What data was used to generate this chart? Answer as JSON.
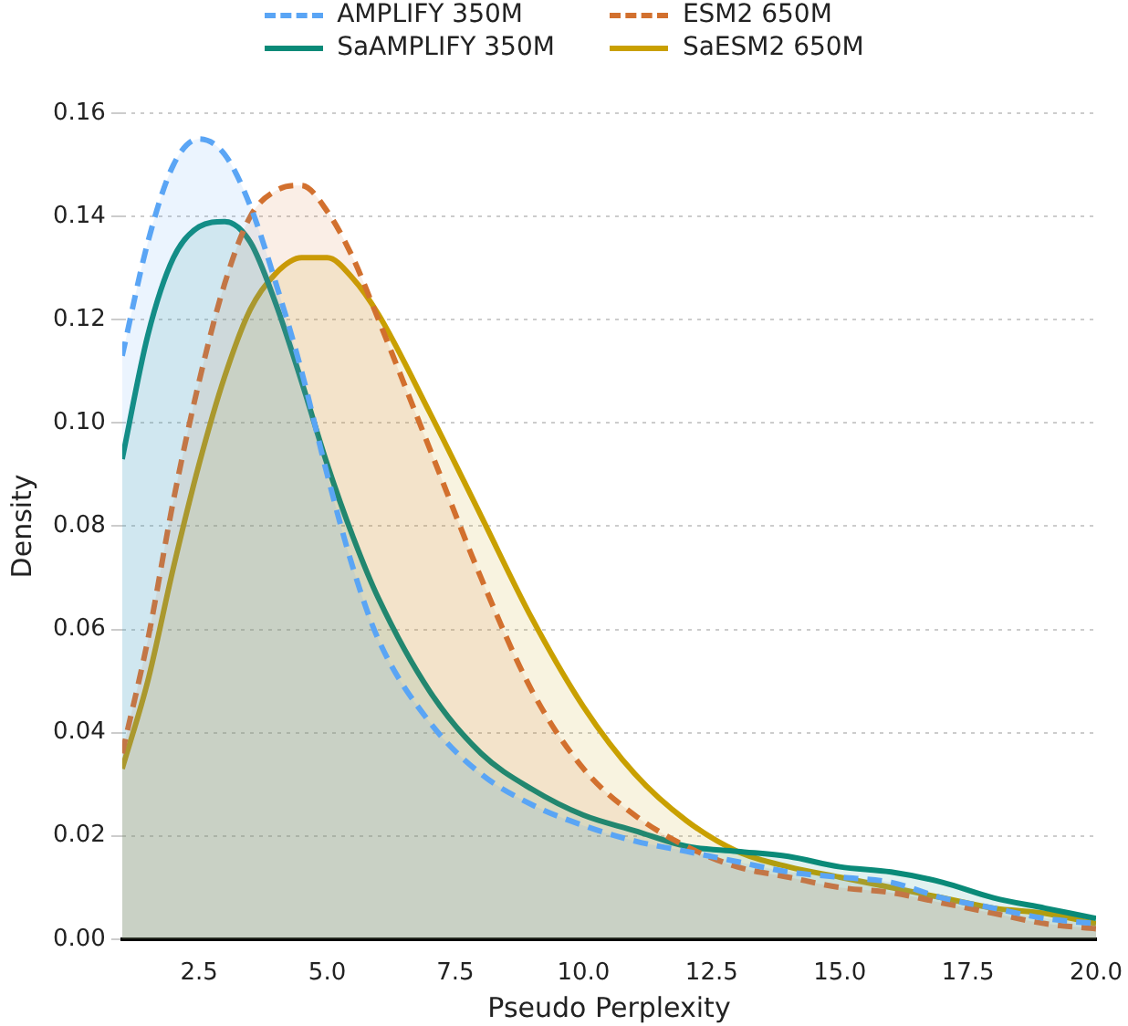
{
  "chart_data": {
    "type": "area",
    "xlabel": "Pseudo Perplexity",
    "ylabel": "Density",
    "x": [
      1,
      1.5,
      2,
      2.5,
      3,
      3.5,
      4,
      4.5,
      5,
      5.5,
      6,
      7,
      8,
      9,
      10,
      11,
      12,
      13,
      14,
      15,
      16,
      17,
      18,
      19,
      20
    ],
    "series": [
      {
        "name": "AMPLIFY 350M",
        "color": "#5aa5f5",
        "line_style": "dashed",
        "values": [
          0.113,
          0.135,
          0.15,
          0.155,
          0.152,
          0.142,
          0.127,
          0.11,
          0.09,
          0.072,
          0.058,
          0.042,
          0.032,
          0.026,
          0.022,
          0.019,
          0.017,
          0.015,
          0.013,
          0.012,
          0.011,
          0.008,
          0.006,
          0.004,
          0.003
        ]
      },
      {
        "name": "ESM2 650M",
        "color": "#d2702e",
        "line_style": "dashed",
        "values": [
          0.036,
          0.058,
          0.085,
          0.108,
          0.127,
          0.14,
          0.145,
          0.146,
          0.141,
          0.132,
          0.12,
          0.095,
          0.07,
          0.048,
          0.033,
          0.024,
          0.018,
          0.014,
          0.012,
          0.01,
          0.009,
          0.007,
          0.005,
          0.003,
          0.002
        ]
      },
      {
        "name": "SaAMPLIFY 350M",
        "color": "#0a8a78",
        "line_style": "solid",
        "values": [
          0.093,
          0.117,
          0.132,
          0.138,
          0.139,
          0.135,
          0.123,
          0.108,
          0.092,
          0.078,
          0.066,
          0.048,
          0.036,
          0.029,
          0.024,
          0.021,
          0.018,
          0.017,
          0.016,
          0.014,
          0.013,
          0.011,
          0.008,
          0.006,
          0.004
        ]
      },
      {
        "name": "SaESM2 650M",
        "color": "#c9a000",
        "line_style": "solid",
        "values": [
          0.033,
          0.05,
          0.072,
          0.092,
          0.109,
          0.122,
          0.129,
          0.132,
          0.132,
          0.128,
          0.121,
          0.102,
          0.082,
          0.062,
          0.045,
          0.032,
          0.023,
          0.017,
          0.014,
          0.012,
          0.01,
          0.008,
          0.006,
          0.005,
          0.003
        ]
      }
    ],
    "xlim": [
      1,
      20
    ],
    "xticks": [
      {
        "value": 2.5,
        "label": "2.5"
      },
      {
        "value": 5,
        "label": "5.0"
      },
      {
        "value": 7.5,
        "label": "7.5"
      },
      {
        "value": 10,
        "label": "10.0"
      },
      {
        "value": 12.5,
        "label": "12.5"
      },
      {
        "value": 15,
        "label": "15.0"
      },
      {
        "value": 17.5,
        "label": "17.5"
      },
      {
        "value": 20,
        "label": "20.0"
      }
    ],
    "ylim": [
      0,
      0.16
    ],
    "yticks": [
      {
        "value": 0,
        "label": "0.00"
      },
      {
        "value": 0.02,
        "label": "0.02"
      },
      {
        "value": 0.04,
        "label": "0.04"
      },
      {
        "value": 0.06,
        "label": "0.06"
      },
      {
        "value": 0.08,
        "label": "0.08"
      },
      {
        "value": 0.1,
        "label": "0.10"
      },
      {
        "value": 0.12,
        "label": "0.12"
      },
      {
        "value": 0.14,
        "label": "0.14"
      },
      {
        "value": 0.16,
        "label": "0.16"
      }
    ],
    "grid": "y",
    "legend": "top"
  }
}
